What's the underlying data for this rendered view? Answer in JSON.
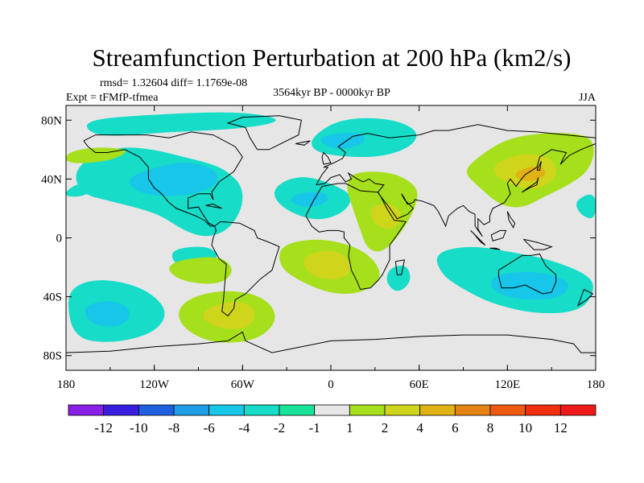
{
  "chart_data": {
    "type": "heatmap",
    "title": "Streamfunction Perturbation at 200 hPa (km2/s)",
    "stats_text": "rmsd= 1.32604 diff= 1.1769e-08",
    "experiment_text": "Expt = tFMfP-tfmea",
    "period_text": "3564kyr BP - 0000kyr BP",
    "season_text": "JJA",
    "x_ticks": [
      {
        "lon": -180,
        "label": "180"
      },
      {
        "lon": -120,
        "label": "120W"
      },
      {
        "lon": -60,
        "label": "60W"
      },
      {
        "lon": 0,
        "label": "0"
      },
      {
        "lon": 60,
        "label": "60E"
      },
      {
        "lon": 120,
        "label": "120E"
      },
      {
        "lon": 180,
        "label": "180"
      }
    ],
    "y_ticks": [
      {
        "lat": 80,
        "label": "80N"
      },
      {
        "lat": 40,
        "label": "40N"
      },
      {
        "lat": 0,
        "label": "0"
      },
      {
        "lat": -40,
        "label": "40S"
      },
      {
        "lat": -80,
        "label": "80S"
      }
    ],
    "xlim": [
      -180,
      180
    ],
    "ylim": [
      -90,
      90
    ],
    "colorbar": {
      "labels": [
        "-12",
        "-10",
        "-8",
        "-6",
        "-4",
        "-2",
        "-1",
        "1",
        "2",
        "4",
        "6",
        "8",
        "10",
        "12"
      ],
      "colors": [
        "#8a1fe6",
        "#3a1ee0",
        "#1f5fe0",
        "#1f9de8",
        "#17c6e8",
        "#17dcc8",
        "#19e39a",
        "#e6e6e6",
        "#a6df1c",
        "#cfd51a",
        "#e0b214",
        "#e58412",
        "#ee5a10",
        "#f2300f",
        "#ee1a1a"
      ]
    },
    "contour_regions": [
      {
        "level": "-2",
        "centers": [
          {
            "lon": -120,
            "lat": 40
          },
          {
            "lon": -140,
            "lat": -55
          },
          {
            "lon": -70,
            "lat": 70
          },
          {
            "lon": 0,
            "lat": 60
          },
          {
            "lon": -20,
            "lat": 20
          },
          {
            "lon": 140,
            "lat": -30
          },
          {
            "lon": 60,
            "lat": -30
          }
        ]
      },
      {
        "level": "-4",
        "centers": [
          {
            "lon": -100,
            "lat": 40
          },
          {
            "lon": -140,
            "lat": -55
          },
          {
            "lon": 140,
            "lat": -30
          }
        ]
      },
      {
        "level": "2",
        "centers": [
          {
            "lon": 130,
            "lat": 45
          },
          {
            "lon": 40,
            "lat": 10
          },
          {
            "lon": 0,
            "lat": -20
          },
          {
            "lon": -70,
            "lat": -55
          }
        ]
      },
      {
        "level": "4",
        "centers": [
          {
            "lon": 130,
            "lat": 45
          },
          {
            "lon": 0,
            "lat": -20
          },
          {
            "lon": -70,
            "lat": -55
          }
        ]
      },
      {
        "level": "6",
        "centers": [
          {
            "lon": 135,
            "lat": 50
          }
        ]
      }
    ]
  }
}
